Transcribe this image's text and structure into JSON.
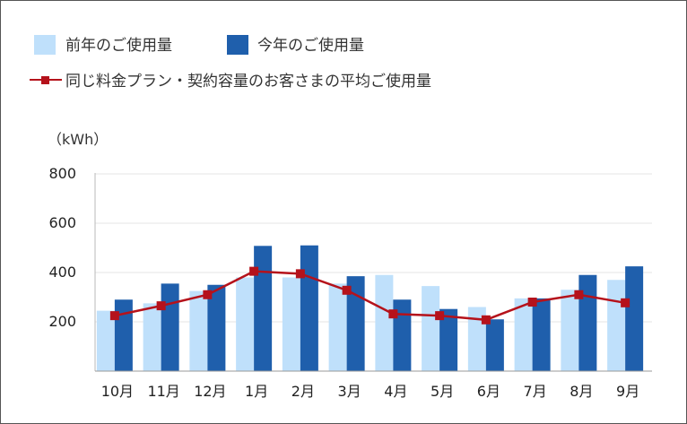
{
  "chart_data": {
    "type": "bar",
    "unit_label": "（kWh）",
    "categories": [
      "10月",
      "11月",
      "12月",
      "1月",
      "2月",
      "3月",
      "4月",
      "5月",
      "6月",
      "7月",
      "8月",
      "9月"
    ],
    "ylim": [
      0,
      800
    ],
    "yticks": [
      "800",
      "600",
      "400",
      "200"
    ],
    "grid": true,
    "legend_position": "top-left",
    "series": [
      {
        "name": "前年のご使用量",
        "kind": "bar",
        "color": "#bfe0fb",
        "values": [
          245,
          275,
          325,
          380,
          380,
          355,
          390,
          345,
          260,
          295,
          330,
          370
        ]
      },
      {
        "name": "今年のご使用量",
        "kind": "bar",
        "color": "#1f5fac",
        "values": [
          290,
          355,
          350,
          508,
          510,
          385,
          290,
          252,
          210,
          295,
          390,
          425
        ]
      },
      {
        "name": "同じ料金プラン・契約容量のお客さまの平均ご使用量",
        "kind": "line",
        "color": "#b5121b",
        "values": [
          225,
          265,
          310,
          405,
          395,
          328,
          232,
          225,
          208,
          280,
          310,
          277
        ]
      }
    ]
  }
}
